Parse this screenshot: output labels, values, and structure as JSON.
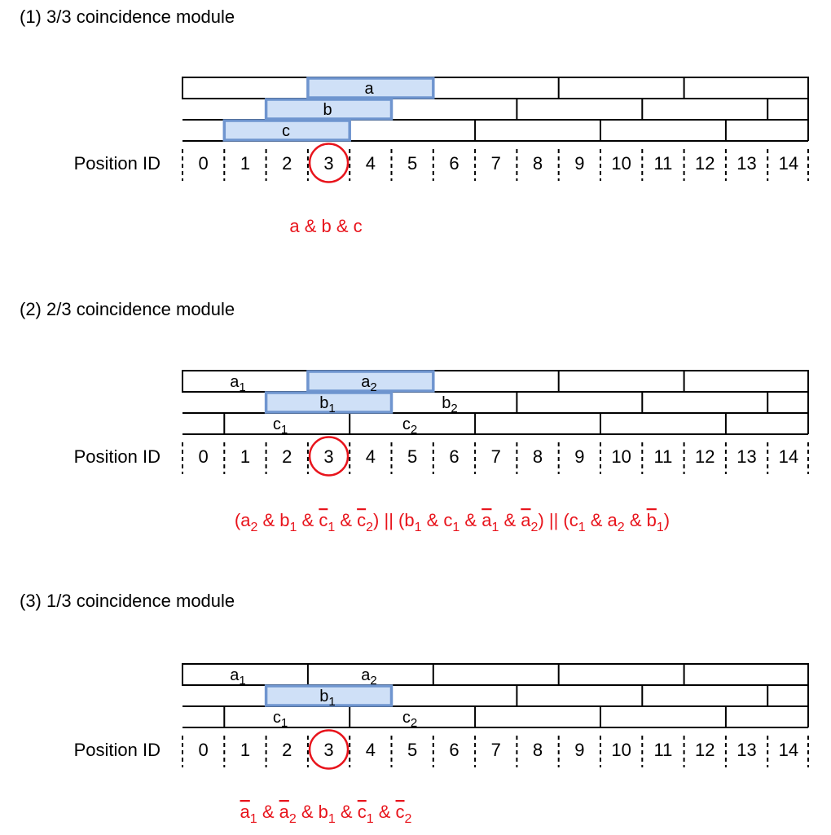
{
  "position_label": "Position ID",
  "position_ids": [
    "0",
    "1",
    "2",
    "3",
    "4",
    "5",
    "6",
    "7",
    "8",
    "9",
    "10",
    "11",
    "12",
    "13",
    "14"
  ],
  "colors": {
    "highlight_fill": "#cfe0f7",
    "highlight_stroke": "#6f95cf",
    "equation": "#e8141c",
    "circle": "#e8141c"
  },
  "modules": [
    {
      "title": "(1) 3/3 coincidence module",
      "highlight_circle_id": "3",
      "bar_labels": [
        {
          "text": "a",
          "sub": ""
        },
        {
          "text": "b",
          "sub": ""
        },
        {
          "text": "c",
          "sub": ""
        }
      ],
      "equation_parts": [
        {
          "t": "a & b & c"
        }
      ]
    },
    {
      "title": "(2) 2/3 coincidence module",
      "highlight_circle_id": "3",
      "bar_labels": [
        {
          "text": "a",
          "sub": "1"
        },
        {
          "text": "a",
          "sub": "2"
        },
        {
          "text": "b",
          "sub": "1"
        },
        {
          "text": "b",
          "sub": "2"
        },
        {
          "text": "c",
          "sub": "1"
        },
        {
          "text": "c",
          "sub": "2"
        }
      ],
      "equation_parts": [
        {
          "t": "(a"
        },
        {
          "s": "2"
        },
        {
          "t": " & b"
        },
        {
          "s": "1"
        },
        {
          "t": " & "
        },
        {
          "o": "c"
        },
        {
          "s": "1"
        },
        {
          "t": " & "
        },
        {
          "o": "c"
        },
        {
          "s": "2"
        },
        {
          "t": ") || (b"
        },
        {
          "s": "1"
        },
        {
          "t": " & c"
        },
        {
          "s": "1"
        },
        {
          "t": " & "
        },
        {
          "o": "a"
        },
        {
          "s": "1"
        },
        {
          "t": " & "
        },
        {
          "o": "a"
        },
        {
          "s": "2"
        },
        {
          "t": ") || (c"
        },
        {
          "s": "1"
        },
        {
          "t": " & a"
        },
        {
          "s": "2"
        },
        {
          "t": " & "
        },
        {
          "o": "b"
        },
        {
          "s": "1"
        },
        {
          "t": ")"
        }
      ]
    },
    {
      "title": "(3) 1/3 coincidence module",
      "highlight_circle_id": "3",
      "bar_labels": [
        {
          "text": "a",
          "sub": "1"
        },
        {
          "text": "a",
          "sub": "2"
        },
        {
          "text": "b",
          "sub": "1"
        },
        {
          "text": "c",
          "sub": "1"
        },
        {
          "text": "c",
          "sub": "2"
        }
      ],
      "equation_parts": [
        {
          "o": "a"
        },
        {
          "s": "1"
        },
        {
          "t": " & "
        },
        {
          "o": "a"
        },
        {
          "s": "2"
        },
        {
          "t": " & b"
        },
        {
          "s": "1"
        },
        {
          "t": " & "
        },
        {
          "o": "c"
        },
        {
          "s": "1"
        },
        {
          "t": " & "
        },
        {
          "o": "c"
        },
        {
          "s": "2"
        }
      ]
    }
  ]
}
